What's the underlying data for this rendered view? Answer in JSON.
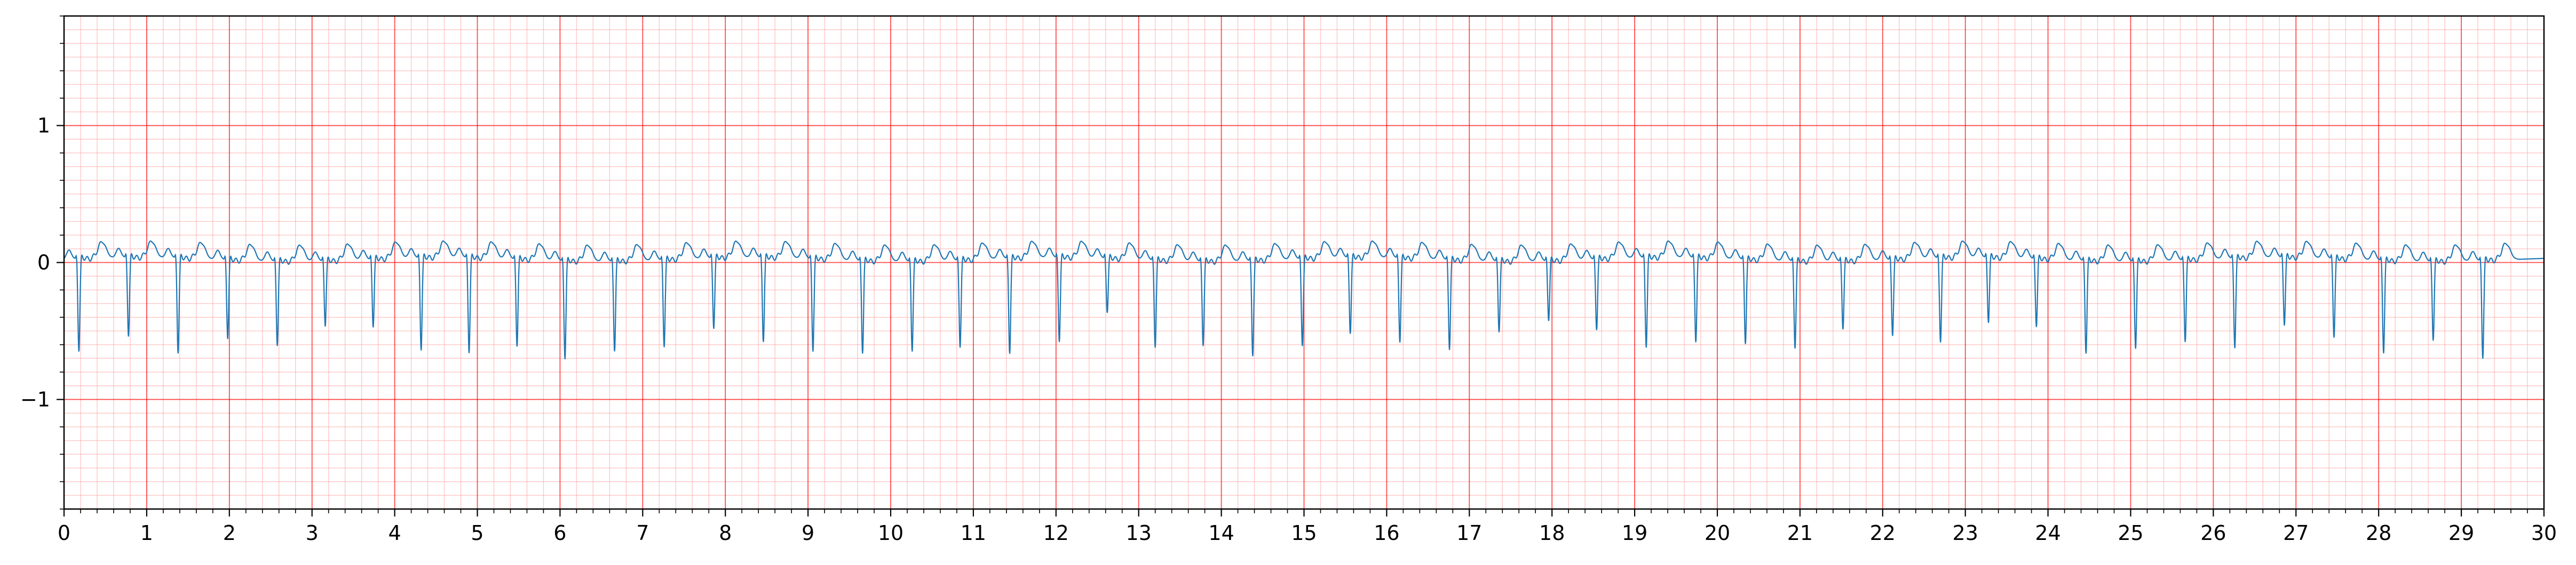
{
  "chart_data": {
    "type": "line",
    "title": "",
    "xlabel": "",
    "ylabel": "",
    "xlim": [
      0,
      30
    ],
    "ylim": [
      -1.8,
      1.8
    ],
    "grid": true,
    "x_ticks": [
      0,
      1,
      2,
      3,
      4,
      5,
      6,
      7,
      8,
      9,
      10,
      11,
      12,
      13,
      14,
      15,
      16,
      17,
      18,
      19,
      20,
      21,
      22,
      23,
      24,
      25,
      26,
      27,
      28,
      29,
      30
    ],
    "x_tick_labels": [
      "0",
      "1",
      "2",
      "3",
      "4",
      "5",
      "6",
      "7",
      "8",
      "9",
      "10",
      "11",
      "12",
      "13",
      "14",
      "15",
      "16",
      "17",
      "18",
      "19",
      "20",
      "21",
      "22",
      "23",
      "24",
      "25",
      "26",
      "27",
      "28",
      "29",
      "30"
    ],
    "y_ticks": [
      -1,
      0,
      1
    ],
    "y_tick_labels": [
      "−1",
      "0",
      "1"
    ],
    "x_minor_step": 0.2,
    "y_minor_step": 0.1,
    "colors": {
      "signal": "#1f77b4",
      "major_grid": "#ff0000",
      "minor_grid": "#ff9999",
      "axes": "#000000"
    },
    "series": [
      {
        "beat_times": [
          0.18,
          0.78,
          1.38,
          1.98,
          2.58,
          3.16,
          3.74,
          4.32,
          4.9,
          5.48,
          6.06,
          6.66,
          7.26,
          7.86,
          8.46,
          9.06,
          9.66,
          10.26,
          10.84,
          11.44,
          12.04,
          12.62,
          13.2,
          13.78,
          14.38,
          14.98,
          15.56,
          16.16,
          16.76,
          17.36,
          17.96,
          18.54,
          19.14,
          19.74,
          20.34,
          20.94,
          21.52,
          22.12,
          22.7,
          23.28,
          23.86,
          24.46,
          25.06,
          25.66,
          26.26,
          26.86,
          27.46,
          28.06,
          28.66,
          29.26
        ],
        "beat_depths": [
          -0.68,
          -0.58,
          -0.7,
          -0.58,
          -0.62,
          -0.48,
          -0.5,
          -0.68,
          -0.7,
          -0.64,
          -0.72,
          -0.66,
          -0.64,
          -0.52,
          -0.62,
          -0.68,
          -0.68,
          -0.66,
          -0.64,
          -0.7,
          -0.62,
          -0.4,
          -0.64,
          -0.62,
          -0.7,
          -0.64,
          -0.56,
          -0.62,
          -0.66,
          -0.52,
          -0.44,
          -0.52,
          -0.66,
          -0.62,
          -0.62,
          -0.64,
          -0.5,
          -0.56,
          -0.62,
          -0.48,
          -0.5,
          -0.68,
          -0.64,
          -0.6,
          -0.66,
          -0.5,
          -0.58,
          -0.68,
          -0.58,
          -0.72
        ]
      }
    ]
  }
}
